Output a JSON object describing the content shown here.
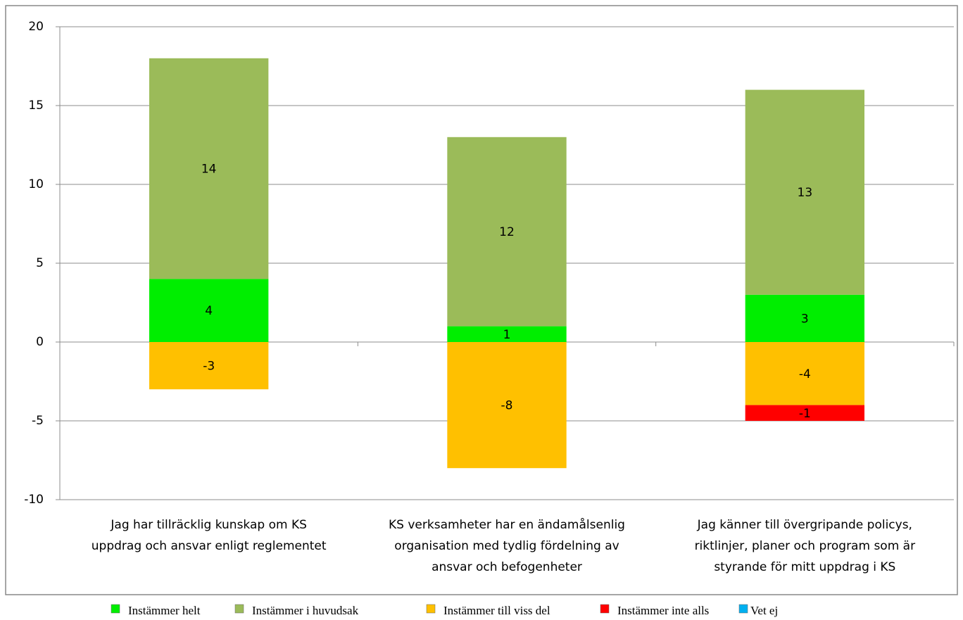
{
  "chart_data": {
    "type": "bar",
    "stacked": true,
    "categories": [
      [
        "Jag har tillräcklig kunskap om KS",
        "uppdrag och ansvar enligt reglementet"
      ],
      [
        "KS verksamheter har en ändamålsenlig",
        "organisation med tydlig fördelning av",
        "ansvar och befogenheter"
      ],
      [
        "Jag känner till övergripande policys,",
        "riktlinjer, planer och program som är",
        "styrande för mitt uppdrag i KS"
      ]
    ],
    "series": [
      {
        "name": "Instämmer helt",
        "color": "#00ee00",
        "values": [
          4,
          1,
          3
        ]
      },
      {
        "name": "Instämmer i huvudsak",
        "color": "#9bbb59",
        "values": [
          14,
          12,
          13
        ]
      },
      {
        "name": "Instämmer till viss del",
        "color": "#ffc000",
        "values": [
          -3,
          -8,
          -4
        ]
      },
      {
        "name": "Instämmer inte alls",
        "color": "#ff0000",
        "values": [
          null,
          null,
          -1
        ]
      },
      {
        "name": "Vet ej",
        "color": "#00b0f0",
        "values": [
          null,
          null,
          null
        ]
      }
    ],
    "ylim": [
      -10,
      20
    ],
    "yticks": [
      -10,
      -5,
      0,
      5,
      10,
      15,
      20
    ],
    "grid": true,
    "legend": "bottom"
  }
}
